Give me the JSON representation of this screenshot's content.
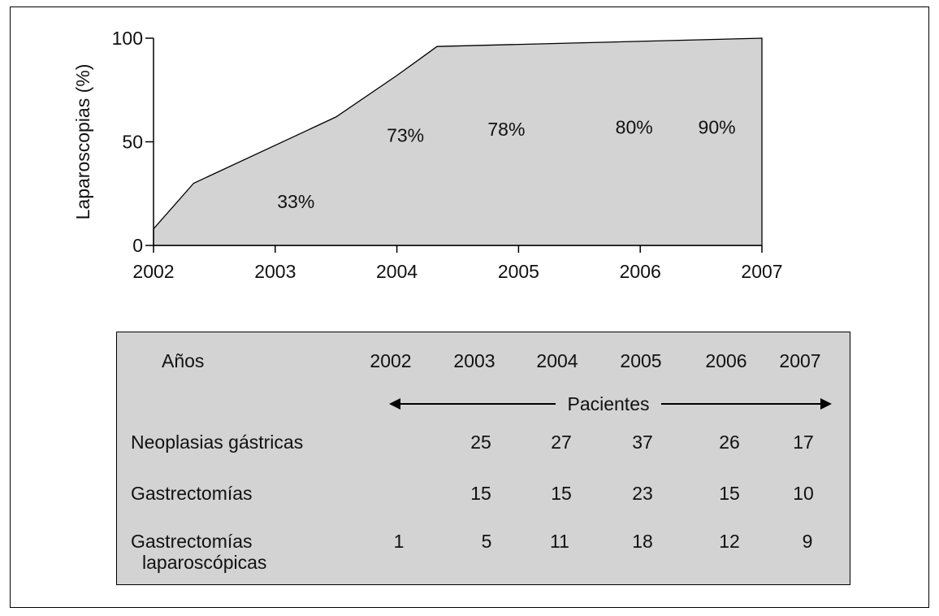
{
  "chart_data": {
    "type": "area",
    "ylabel": "Laparoscopias (%)",
    "xlabel": "",
    "title": "",
    "xlim": [
      2002,
      2007
    ],
    "ylim": [
      0,
      100
    ],
    "x_ticks": [
      "2002",
      "2003",
      "2004",
      "2005",
      "2006",
      "2007"
    ],
    "y_ticks": [
      "0",
      "50",
      "100"
    ],
    "x": [
      2002.0,
      2002.33,
      2003.5,
      2004.0,
      2004.33,
      2007.0
    ],
    "y": [
      8,
      30,
      62,
      82,
      96,
      100
    ],
    "annotations": [
      {
        "text": "33%",
        "x": 2003.17,
        "y": 18
      },
      {
        "text": "73%",
        "x": 2004.07,
        "y": 50
      },
      {
        "text": "78%",
        "x": 2004.9,
        "y": 53
      },
      {
        "text": "80%",
        "x": 2005.95,
        "y": 54
      },
      {
        "text": "90%",
        "x": 2006.63,
        "y": 54
      }
    ],
    "fill_color": "#d3d3d3",
    "grid": false
  },
  "table": {
    "header_label": "Años",
    "years": [
      "2002",
      "2003",
      "2004",
      "2005",
      "2006",
      "2007"
    ],
    "pacientes_label": "Pacientes",
    "rows": [
      {
        "label": "Neoplasias gástricas",
        "label2": "",
        "values": [
          "",
          "25",
          "27",
          "37",
          "26",
          "17"
        ]
      },
      {
        "label": "Gastrectomías",
        "label2": "",
        "values": [
          "",
          "15",
          "15",
          "23",
          "15",
          "10"
        ]
      },
      {
        "label": "Gastrectomías",
        "label2": "laparoscópicas",
        "values": [
          "1",
          "5",
          "11",
          "18",
          "12",
          "9"
        ]
      }
    ]
  }
}
